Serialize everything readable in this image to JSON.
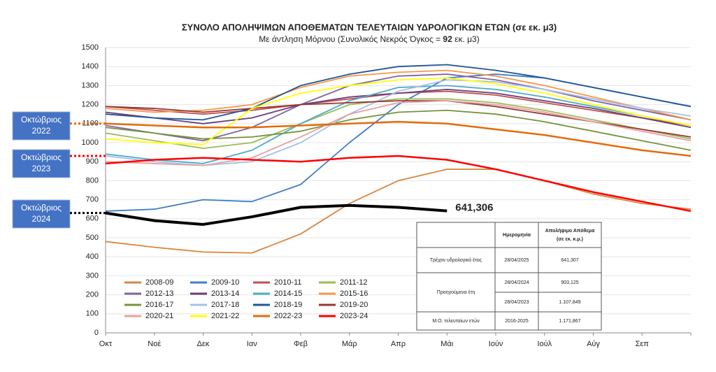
{
  "chart_data": {
    "type": "line",
    "title": "ΣΥΝΟΛΟ ΑΠΟΛΗΨΙΜΩΝ ΑΠΟΘΕΜΑΤΩΝ ΤΕΛΕΥΤΑΙΩΝ ΥΔΡΟΛΟΓΙΚΩΝ ΕΤΩΝ  (σε εκ. μ3)",
    "subtitle_parts": [
      "Με άντληση Μόρνου (Συνολικός Νεκρός Όγκος = ",
      "92",
      " εκ. μ3)"
    ],
    "categories": [
      "Οκτ",
      "Νοέ",
      "Δεκ",
      "Ιαν",
      "Φεβ",
      "Μάρ",
      "Απρ",
      "Μάι",
      "Ιούν",
      "Ιούλ",
      "Αύγ",
      "Σεπ",
      null
    ],
    "ylim": [
      0,
      1500
    ],
    "yticks": [
      0,
      100,
      200,
      300,
      400,
      500,
      600,
      700,
      800,
      900,
      1000,
      1100,
      1200,
      1300,
      1400,
      1500
    ],
    "grid": true,
    "series": [
      {
        "name": "2008-09",
        "color": "#d9863f",
        "values": [
          480,
          450,
          425,
          420,
          520,
          680,
          800,
          860,
          860,
          800,
          730,
          680,
          650
        ]
      },
      {
        "name": "2009-10",
        "color": "#3f7fc4",
        "values": [
          640,
          650,
          700,
          690,
          780,
          1000,
          1200,
          1340,
          1360,
          1340,
          1290,
          1240,
          1190
        ]
      },
      {
        "name": "2010-11",
        "color": "#c0504d",
        "values": [
          1190,
          1170,
          1150,
          1170,
          1200,
          1230,
          1260,
          1270,
          1250,
          1210,
          1170,
          1130,
          1090
        ]
      },
      {
        "name": "2011-12",
        "color": "#9bbb59",
        "values": [
          1050,
          1010,
          970,
          1000,
          1100,
          1200,
          1230,
          1230,
          1210,
          1170,
          1120,
          1070,
          1020
        ]
      },
      {
        "name": "2012-13",
        "color": "#8064a2",
        "values": [
          1090,
          1050,
          1010,
          1080,
          1200,
          1300,
          1350,
          1360,
          1330,
          1280,
          1220,
          1170,
          1120
        ]
      },
      {
        "name": "2013-14",
        "color": "#6a3d7a",
        "values": [
          1160,
          1130,
          1100,
          1130,
          1200,
          1240,
          1260,
          1280,
          1260,
          1220,
          1180,
          1130,
          1080
        ]
      },
      {
        "name": "2014-15",
        "color": "#4bacc6",
        "values": [
          940,
          910,
          890,
          960,
          1100,
          1220,
          1290,
          1300,
          1280,
          1240,
          1190,
          1140,
          1090
        ]
      },
      {
        "name": "2015-16",
        "color": "#f79646",
        "values": [
          1180,
          1160,
          1170,
          1200,
          1290,
          1350,
          1370,
          1380,
          1350,
          1300,
          1240,
          1180,
          1120
        ]
      },
      {
        "name": "2016-17",
        "color": "#77933c",
        "values": [
          1080,
          1050,
          1020,
          1030,
          1060,
          1120,
          1160,
          1170,
          1150,
          1110,
          1060,
          1010,
          960
        ]
      },
      {
        "name": "2017-18",
        "color": "#a6c0e6",
        "values": [
          930,
          900,
          880,
          900,
          1000,
          1150,
          1270,
          1330,
          1320,
          1280,
          1230,
          1180,
          1140
        ]
      },
      {
        "name": "2018-19",
        "color": "#1f5597",
        "values": [
          1150,
          1130,
          1120,
          1180,
          1300,
          1360,
          1400,
          1410,
          1380,
          1340,
          1290,
          1240,
          1190
        ]
      },
      {
        "name": "2019-20",
        "color": "#953735",
        "values": [
          1190,
          1180,
          1160,
          1180,
          1200,
          1210,
          1220,
          1220,
          1190,
          1150,
          1110,
          1070,
          1030
        ]
      },
      {
        "name": "2020-21",
        "color": "#e6a0a0",
        "values": [
          900,
          890,
          880,
          920,
          1030,
          1150,
          1210,
          1220,
          1200,
          1160,
          1110,
          1060,
          1010
        ]
      },
      {
        "name": "2021-22",
        "color": "#ffff00",
        "values": [
          1020,
          1000,
          990,
          1180,
          1260,
          1300,
          1330,
          1340,
          1310,
          1260,
          1200,
          1140,
          1090
        ]
      },
      {
        "name": "2022-23",
        "color": "#e36c0a",
        "values": [
          1100,
          1090,
          1080,
          1080,
          1090,
          1100,
          1110,
          1100,
          1070,
          1040,
          1000,
          960,
          930
        ]
      },
      {
        "name": "2023-24",
        "color": "#ff0000",
        "values": [
          890,
          910,
          920,
          910,
          900,
          920,
          930,
          910,
          860,
          800,
          740,
          690,
          640
        ]
      }
    ],
    "current": {
      "color": "#000000",
      "values": [
        630,
        590,
        570,
        610,
        660,
        670,
        660,
        641.306,
        null,
        null,
        null,
        null,
        null
      ],
      "value_labels": [
        null,
        null,
        null,
        null,
        null,
        null,
        null,
        "641,306",
        null,
        null,
        null,
        null,
        null
      ]
    },
    "annotations": [
      {
        "lines": [
          "Οκτώβριος",
          "2022"
        ],
        "value": 1100,
        "color": "#e36c0a"
      },
      {
        "lines": [
          "Οκτώβριος",
          "2023"
        ],
        "value": 930,
        "color": "#ff0000"
      },
      {
        "lines": [
          "Οκτώβριος",
          "2024"
        ],
        "value": 630,
        "color": "#000000"
      }
    ],
    "table": {
      "header": [
        "Ημερομηνία",
        "Απολήψιμο Απόθεμα",
        "(σε εκ. κ.μ.)"
      ],
      "rows": [
        [
          "Τρέχον υδρολογικό έτος",
          "28/04/2025",
          "641,307"
        ],
        [
          "Προηγούμενα έτη",
          "28/04/2024",
          "903,125"
        ],
        [
          "",
          "28/04/2023",
          "1.107,849"
        ],
        [
          "Μ.Ο. τελευταίων ετών",
          "2016-2025",
          "1.171,867"
        ]
      ]
    }
  }
}
